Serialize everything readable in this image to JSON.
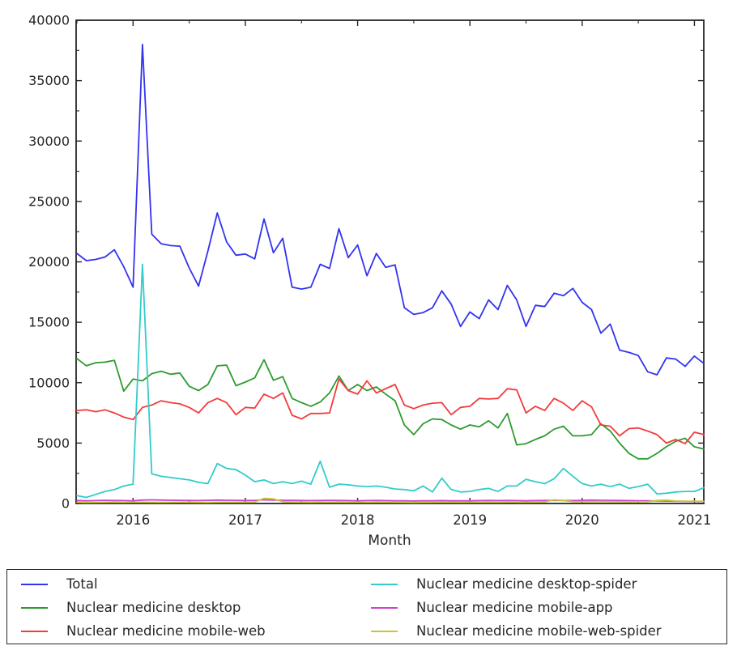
{
  "chart_data": {
    "type": "line",
    "title": "",
    "xlabel": "Month",
    "ylabel": "",
    "ylim": [
      0,
      40000
    ],
    "grid": false,
    "legend_position": "bottom",
    "axis_color": "#262626",
    "background_color": "#ffffff",
    "y_ticks": [
      0,
      5000,
      10000,
      15000,
      20000,
      25000,
      30000,
      35000,
      40000
    ],
    "y_minor_step": 2500,
    "x_tick_labels": [
      "2016",
      "2017",
      "2018",
      "2019",
      "2020",
      "2021"
    ],
    "x_tick_month_index": [
      6,
      18,
      30,
      42,
      54,
      66
    ],
    "x_minor_month_index": [
      0,
      12,
      24,
      36,
      48,
      60
    ],
    "months": [
      "2015-07",
      "2015-08",
      "2015-09",
      "2015-10",
      "2015-11",
      "2015-12",
      "2016-01",
      "2016-02",
      "2016-03",
      "2016-04",
      "2016-05",
      "2016-06",
      "2016-07",
      "2016-08",
      "2016-09",
      "2016-10",
      "2016-11",
      "2016-12",
      "2017-01",
      "2017-02",
      "2017-03",
      "2017-04",
      "2017-05",
      "2017-06",
      "2017-07",
      "2017-08",
      "2017-09",
      "2017-10",
      "2017-11",
      "2017-12",
      "2018-01",
      "2018-02",
      "2018-03",
      "2018-04",
      "2018-05",
      "2018-06",
      "2018-07",
      "2018-08",
      "2018-09",
      "2018-10",
      "2018-11",
      "2018-12",
      "2019-01",
      "2019-02",
      "2019-03",
      "2019-04",
      "2019-05",
      "2019-06",
      "2019-07",
      "2019-08",
      "2019-09",
      "2019-10",
      "2019-11",
      "2019-12",
      "2020-01",
      "2020-02",
      "2020-03",
      "2020-04",
      "2020-05",
      "2020-06",
      "2020-07",
      "2020-08",
      "2020-09",
      "2020-10",
      "2020-11",
      "2020-12",
      "2021-01",
      "2021-02"
    ],
    "series": [
      {
        "name": "Total",
        "color": "#3333f0",
        "values": [
          20700,
          20100,
          20200,
          20400,
          21000,
          19600,
          17900,
          38000,
          22300,
          21500,
          21350,
          21300,
          19500,
          18000,
          20900,
          24050,
          21650,
          20550,
          20650,
          20250,
          23550,
          20750,
          21950,
          17900,
          17750,
          17900,
          19800,
          19450,
          22750,
          20350,
          21400,
          18850,
          20700,
          19550,
          19750,
          16200,
          15650,
          15800,
          16200,
          17600,
          16500,
          14650,
          15850,
          15300,
          16850,
          16050,
          18050,
          16850,
          14650,
          16400,
          16300,
          17400,
          17200,
          17800,
          16650,
          16050,
          14100,
          14850,
          12700,
          12500,
          12250,
          10900,
          10650,
          12050,
          11950,
          11350,
          12200,
          11600
        ]
      },
      {
        "name": "Nuclear medicine desktop",
        "color": "#2e9b2e",
        "values": [
          12000,
          11400,
          11650,
          11700,
          11850,
          9300,
          10300,
          10150,
          10750,
          10950,
          10700,
          10800,
          9700,
          9350,
          9850,
          11400,
          11450,
          9750,
          10050,
          10400,
          11900,
          10200,
          10500,
          8700,
          8350,
          8050,
          8400,
          9150,
          10550,
          9350,
          9850,
          9350,
          9650,
          9050,
          8500,
          6500,
          5700,
          6600,
          7000,
          6950,
          6500,
          6150,
          6500,
          6350,
          6850,
          6250,
          7450,
          4850,
          4950,
          5300,
          5600,
          6150,
          6400,
          5600,
          5600,
          5700,
          6600,
          6000,
          5000,
          4150,
          3700,
          3700,
          4150,
          4700,
          5150,
          5400,
          4700,
          4500
        ]
      },
      {
        "name": "Nuclear medicine mobile-web",
        "color": "#f43b3b",
        "values": [
          7700,
          7750,
          7600,
          7750,
          7500,
          7150,
          6950,
          7950,
          8150,
          8500,
          8350,
          8250,
          7950,
          7500,
          8350,
          8700,
          8350,
          7350,
          7950,
          7900,
          9050,
          8700,
          9150,
          7300,
          7000,
          7450,
          7450,
          7500,
          10300,
          9350,
          9050,
          10150,
          9150,
          9500,
          9850,
          8150,
          7850,
          8150,
          8300,
          8350,
          7350,
          7950,
          8050,
          8700,
          8650,
          8700,
          9500,
          9400,
          7500,
          8050,
          7700,
          8700,
          8300,
          7700,
          8500,
          8000,
          6500,
          6400,
          5600,
          6200,
          6250,
          6000,
          5700,
          5000,
          5300,
          4950,
          5900,
          5700
        ]
      },
      {
        "name": "Nuclear medicine desktop-spider",
        "color": "#33cbcb",
        "values": [
          650,
          500,
          750,
          1000,
          1150,
          1450,
          1600,
          19800,
          2450,
          2250,
          2150,
          2050,
          1950,
          1750,
          1650,
          3300,
          2900,
          2800,
          2350,
          1800,
          1950,
          1650,
          1800,
          1650,
          1850,
          1600,
          3500,
          1350,
          1600,
          1550,
          1450,
          1400,
          1450,
          1350,
          1200,
          1150,
          1050,
          1450,
          950,
          2100,
          1150,
          950,
          1000,
          1150,
          1250,
          1000,
          1450,
          1450,
          2000,
          1800,
          1650,
          2050,
          2900,
          2250,
          1650,
          1450,
          1600,
          1400,
          1600,
          1250,
          1400,
          1600,
          800,
          850,
          950,
          1000,
          1000,
          1300
        ]
      },
      {
        "name": "Nuclear medicine mobile-app",
        "color": "#cc44cc",
        "values": [
          250,
          230,
          240,
          260,
          250,
          240,
          230,
          280,
          300,
          280,
          270,
          260,
          250,
          240,
          260,
          280,
          270,
          260,
          250,
          260,
          300,
          280,
          270,
          260,
          250,
          240,
          250,
          260,
          250,
          240,
          230,
          240,
          250,
          240,
          230,
          220,
          210,
          220,
          230,
          240,
          230,
          220,
          230,
          240,
          250,
          240,
          250,
          240,
          230,
          240,
          250,
          260,
          250,
          240,
          260,
          280,
          270,
          260,
          250,
          240,
          230,
          220,
          210,
          200,
          190,
          180,
          170,
          160
        ]
      },
      {
        "name": "Nuclear medicine mobile-web-spider",
        "color": "#c6c632",
        "values": [
          100,
          90,
          95,
          100,
          110,
          100,
          105,
          110,
          100,
          95,
          100,
          105,
          100,
          95,
          90,
          100,
          110,
          105,
          110,
          120,
          420,
          380,
          150,
          120,
          110,
          100,
          105,
          110,
          115,
          110,
          105,
          100,
          110,
          105,
          100,
          95,
          90,
          95,
          100,
          110,
          105,
          100,
          105,
          110,
          115,
          110,
          120,
          115,
          110,
          120,
          130,
          300,
          250,
          150,
          140,
          150,
          160,
          150,
          140,
          130,
          140,
          150,
          250,
          280,
          200,
          180,
          190,
          170
        ]
      }
    ]
  }
}
